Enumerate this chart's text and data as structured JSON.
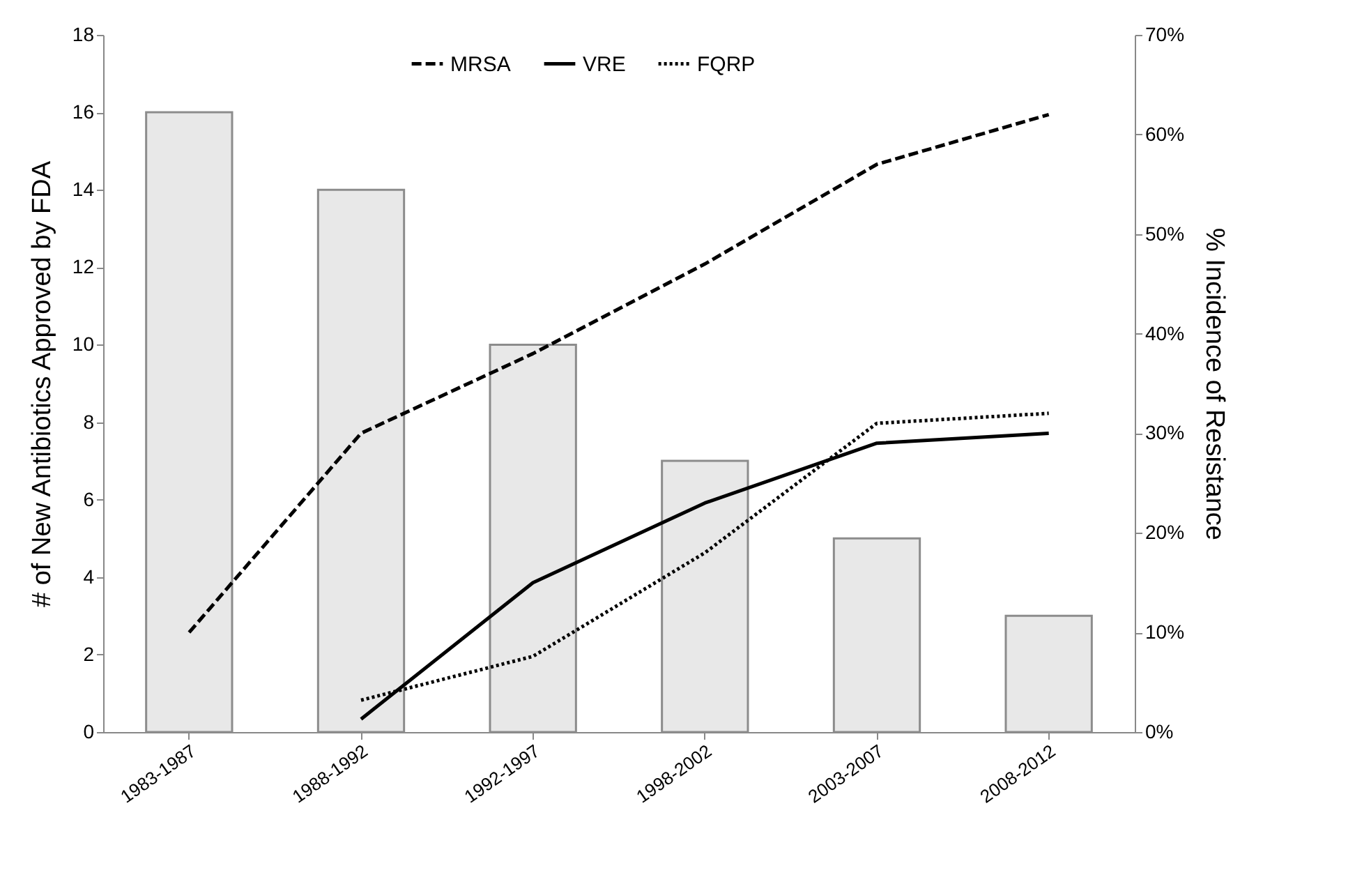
{
  "chart_data": {
    "type": "bar",
    "categories": [
      "1983-1987",
      "1988-1992",
      "1992-1997",
      "1998-2002",
      "2003-2007",
      "2008-2012"
    ],
    "ylabel": "# of New Antibiotics Approved by FDA",
    "y2label": "% Incidence of Resistance",
    "ylim": [
      0,
      18
    ],
    "yticks": [
      0,
      2,
      4,
      6,
      8,
      10,
      12,
      14,
      16,
      18
    ],
    "y2lim": [
      0,
      70
    ],
    "y2ticks": [
      {
        "value": 0,
        "label": "0%"
      },
      {
        "value": 10,
        "label": "10%"
      },
      {
        "value": 20,
        "label": "20%"
      },
      {
        "value": 30,
        "label": "30%"
      },
      {
        "value": 40,
        "label": "40%"
      },
      {
        "value": 50,
        "label": "50%"
      },
      {
        "value": 60,
        "label": "60%"
      },
      {
        "value": 70,
        "label": "70%"
      }
    ],
    "legend": "top",
    "grid": false,
    "series": [
      {
        "color": "#e8e8e8",
        "values": [
          16,
          14,
          10,
          7,
          5,
          3
        ]
      },
      {
        "type": "line",
        "name": "MRSA",
        "axis": "y2",
        "color": "#000000",
        "line_style": "dashed",
        "values": [
          10,
          30,
          38,
          47,
          57,
          62
        ]
      },
      {
        "type": "line",
        "name": "VRE",
        "axis": "y2",
        "color": "#000000",
        "line_style": "solid",
        "values": [
          null,
          1.3,
          15,
          23,
          29,
          30
        ]
      },
      {
        "type": "line",
        "name": "FQRP",
        "axis": "y2",
        "color": "#000000",
        "line_style": "dotted",
        "values": [
          null,
          3.2,
          7.6,
          18,
          31,
          32
        ]
      }
    ]
  }
}
